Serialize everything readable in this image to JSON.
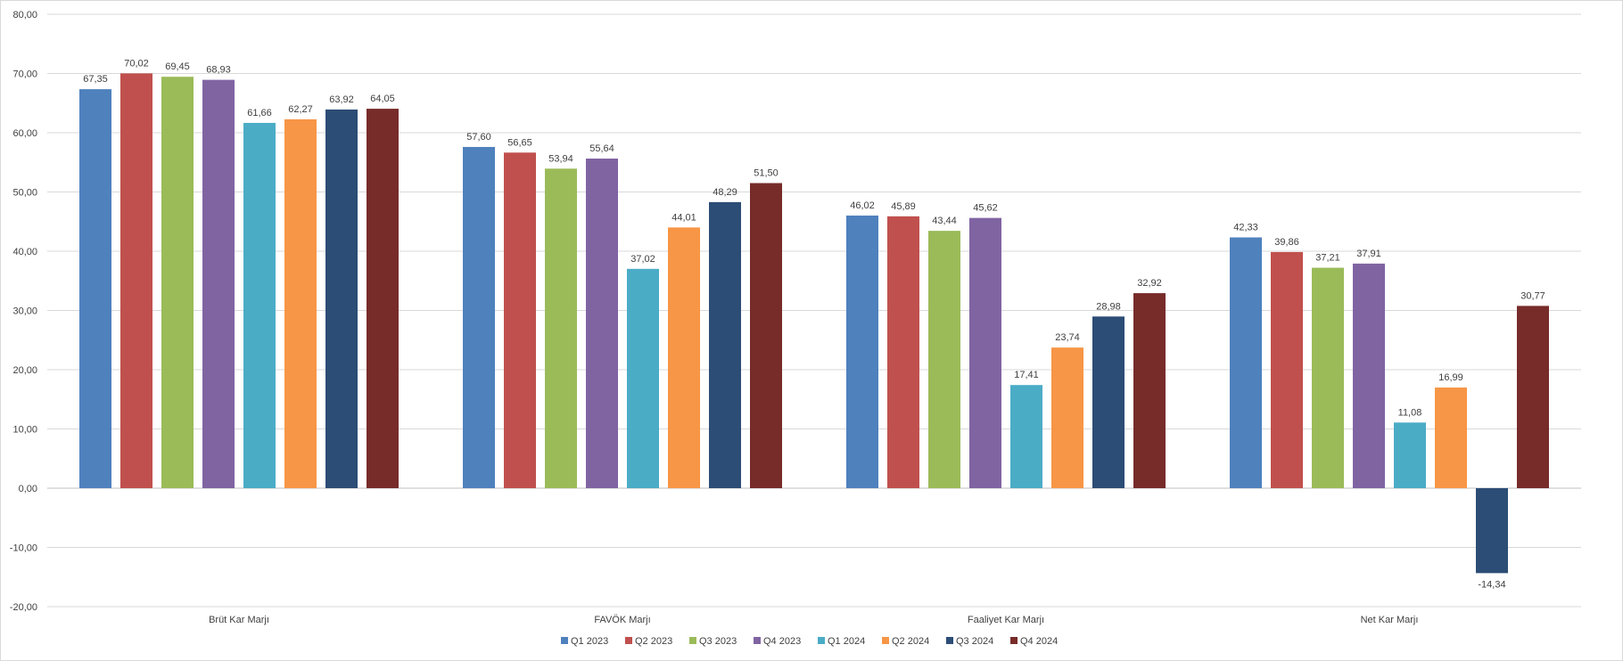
{
  "chart_data": {
    "type": "bar",
    "title": "",
    "xlabel": "",
    "ylabel": "",
    "ylim": [
      -20,
      80
    ],
    "y_ticks": [
      80,
      70,
      60,
      50,
      40,
      30,
      20,
      10,
      0,
      -10,
      -20
    ],
    "y_tick_labels": [
      "80,00",
      "70,00",
      "60,00",
      "50,00",
      "40,00",
      "30,00",
      "20,00",
      "10,00",
      "0,00",
      "-10,00",
      "-20,00"
    ],
    "grid": true,
    "legend_position": "bottom",
    "categories": [
      "Brüt Kar Marjı",
      "FAVÖK Marjı",
      "Faaliyet Kar Marjı",
      "Net Kar Marjı"
    ],
    "series": [
      {
        "name": "Q1 2023",
        "color": "#4f81bd",
        "values": [
          67.35,
          57.6,
          46.02,
          42.33
        ],
        "labels": [
          "67,35",
          "57,60",
          "46,02",
          "42,33"
        ]
      },
      {
        "name": "Q2 2023",
        "color": "#c0504d",
        "values": [
          70.02,
          56.65,
          45.89,
          39.86
        ],
        "labels": [
          "70,02",
          "56,65",
          "45,89",
          "39,86"
        ]
      },
      {
        "name": "Q3 2023",
        "color": "#9bbb59",
        "values": [
          69.45,
          53.94,
          43.44,
          37.21
        ],
        "labels": [
          "69,45",
          "53,94",
          "43,44",
          "37,21"
        ]
      },
      {
        "name": "Q4 2023",
        "color": "#8064a2",
        "values": [
          68.93,
          55.64,
          45.62,
          37.91
        ],
        "labels": [
          "68,93",
          "55,64",
          "45,62",
          "37,91"
        ]
      },
      {
        "name": "Q1 2024",
        "color": "#4bacc6",
        "values": [
          61.66,
          37.02,
          17.41,
          11.08
        ],
        "labels": [
          "61,66",
          "37,02",
          "17,41",
          "11,08"
        ]
      },
      {
        "name": "Q2 2024",
        "color": "#f79646",
        "values": [
          62.27,
          44.01,
          23.74,
          16.99
        ],
        "labels": [
          "62,27",
          "44,01",
          "23,74",
          "16,99"
        ]
      },
      {
        "name": "Q3 2024",
        "color": "#2c4d75",
        "values": [
          63.92,
          48.29,
          28.98,
          -14.34
        ],
        "labels": [
          "63,92",
          "48,29",
          "28,98",
          "-14,34"
        ]
      },
      {
        "name": "Q4 2024",
        "color": "#772c2a",
        "values": [
          64.05,
          51.5,
          32.92,
          30.77
        ],
        "labels": [
          "64,05",
          "51,50",
          "32,92",
          "30,77"
        ]
      }
    ]
  }
}
